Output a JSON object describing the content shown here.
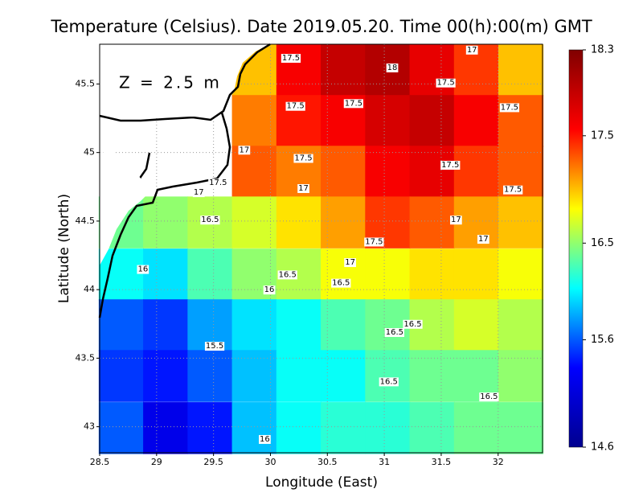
{
  "chart_data": {
    "type": "heatmap",
    "title": "Temperature (Celsius). Date 2019.05.20. Time 00(h):00(m) GMT",
    "annotation": "Z = 2.5 m",
    "xlabel": "Longitude (East)",
    "ylabel": "Latitude (North)",
    "xlim": [
      28.5,
      32.39
    ],
    "ylim": [
      42.81,
      45.79
    ],
    "xticks": [
      28.5,
      29,
      29.5,
      30,
      30.5,
      31,
      31.5,
      32
    ],
    "yticks": [
      43,
      43.5,
      44,
      44.5,
      45,
      45.5
    ],
    "grid": true,
    "x": [
      28.69,
      29.08,
      29.47,
      29.86,
      30.25,
      30.64,
      31.03,
      31.42,
      31.81,
      32.2
    ],
    "y": [
      45.6,
      45.23,
      44.86,
      44.49,
      44.11,
      43.74,
      43.37,
      42.99
    ],
    "z": [
      [
        null,
        null,
        null,
        17.0,
        17.6,
        17.9,
        18.0,
        17.7,
        17.4,
        17.0
      ],
      [
        null,
        null,
        null,
        17.2,
        17.5,
        17.6,
        17.8,
        17.9,
        17.6,
        17.3
      ],
      [
        null,
        null,
        null,
        17.3,
        17.2,
        17.3,
        17.6,
        17.7,
        17.4,
        17.3
      ],
      [
        16.4,
        16.5,
        16.6,
        16.7,
        16.9,
        17.1,
        17.4,
        17.3,
        17.1,
        17.0
      ],
      [
        16.1,
        16.0,
        16.3,
        16.5,
        16.6,
        16.8,
        16.8,
        16.9,
        16.9,
        16.8
      ],
      [
        15.6,
        15.5,
        15.8,
        16.0,
        16.1,
        16.3,
        16.4,
        16.6,
        16.7,
        16.6
      ],
      [
        15.5,
        15.4,
        15.6,
        15.9,
        16.1,
        16.1,
        16.3,
        16.4,
        16.4,
        16.5
      ],
      [
        15.6,
        15.2,
        15.4,
        15.9,
        16.1,
        16.2,
        16.2,
        16.3,
        16.4,
        16.4
      ]
    ],
    "clim": [
      14.6,
      18.3
    ],
    "cticks": [
      14.6,
      15.6,
      16.5,
      17.5,
      18.3
    ],
    "colorscale": [
      "#00008f",
      "#0000ff",
      "#00ffff",
      "#ffff00",
      "#ff0000",
      "#800000"
    ],
    "contour_labels": [
      {
        "lon": 30.18,
        "lat": 45.69,
        "value": 17.5
      },
      {
        "lon": 31.07,
        "lat": 45.62,
        "value": 18
      },
      {
        "lon": 31.77,
        "lat": 45.75,
        "value": 17
      },
      {
        "lon": 31.54,
        "lat": 45.51,
        "value": 17.5
      },
      {
        "lon": 30.22,
        "lat": 45.34,
        "value": 17.5
      },
      {
        "lon": 30.73,
        "lat": 45.36,
        "value": 17.5
      },
      {
        "lon": 32.1,
        "lat": 45.33,
        "value": 17.5
      },
      {
        "lon": 29.77,
        "lat": 45.02,
        "value": 17
      },
      {
        "lon": 30.29,
        "lat": 44.96,
        "value": 17.5
      },
      {
        "lon": 31.58,
        "lat": 44.91,
        "value": 17.5
      },
      {
        "lon": 29.54,
        "lat": 44.78,
        "value": 17.5
      },
      {
        "lon": 29.37,
        "lat": 44.71,
        "value": 17
      },
      {
        "lon": 30.29,
        "lat": 44.74,
        "value": 17
      },
      {
        "lon": 32.13,
        "lat": 44.73,
        "value": 17.5
      },
      {
        "lon": 29.47,
        "lat": 44.51,
        "value": 16.5
      },
      {
        "lon": 31.63,
        "lat": 44.51,
        "value": 17
      },
      {
        "lon": 31.87,
        "lat": 44.37,
        "value": 17
      },
      {
        "lon": 30.91,
        "lat": 44.35,
        "value": 17.5
      },
      {
        "lon": 30.7,
        "lat": 44.2,
        "value": 17
      },
      {
        "lon": 28.88,
        "lat": 44.15,
        "value": 16
      },
      {
        "lon": 30.15,
        "lat": 44.11,
        "value": 16.5
      },
      {
        "lon": 30.62,
        "lat": 44.05,
        "value": 16.5
      },
      {
        "lon": 29.99,
        "lat": 44.0,
        "value": 16
      },
      {
        "lon": 31.25,
        "lat": 43.75,
        "value": 16.5
      },
      {
        "lon": 31.09,
        "lat": 43.69,
        "value": 16.5
      },
      {
        "lon": 29.51,
        "lat": 43.59,
        "value": 15.5
      },
      {
        "lon": 31.04,
        "lat": 43.33,
        "value": 16.5
      },
      {
        "lon": 31.92,
        "lat": 43.22,
        "value": 16.5
      },
      {
        "lon": 29.95,
        "lat": 42.91,
        "value": 16
      }
    ]
  }
}
